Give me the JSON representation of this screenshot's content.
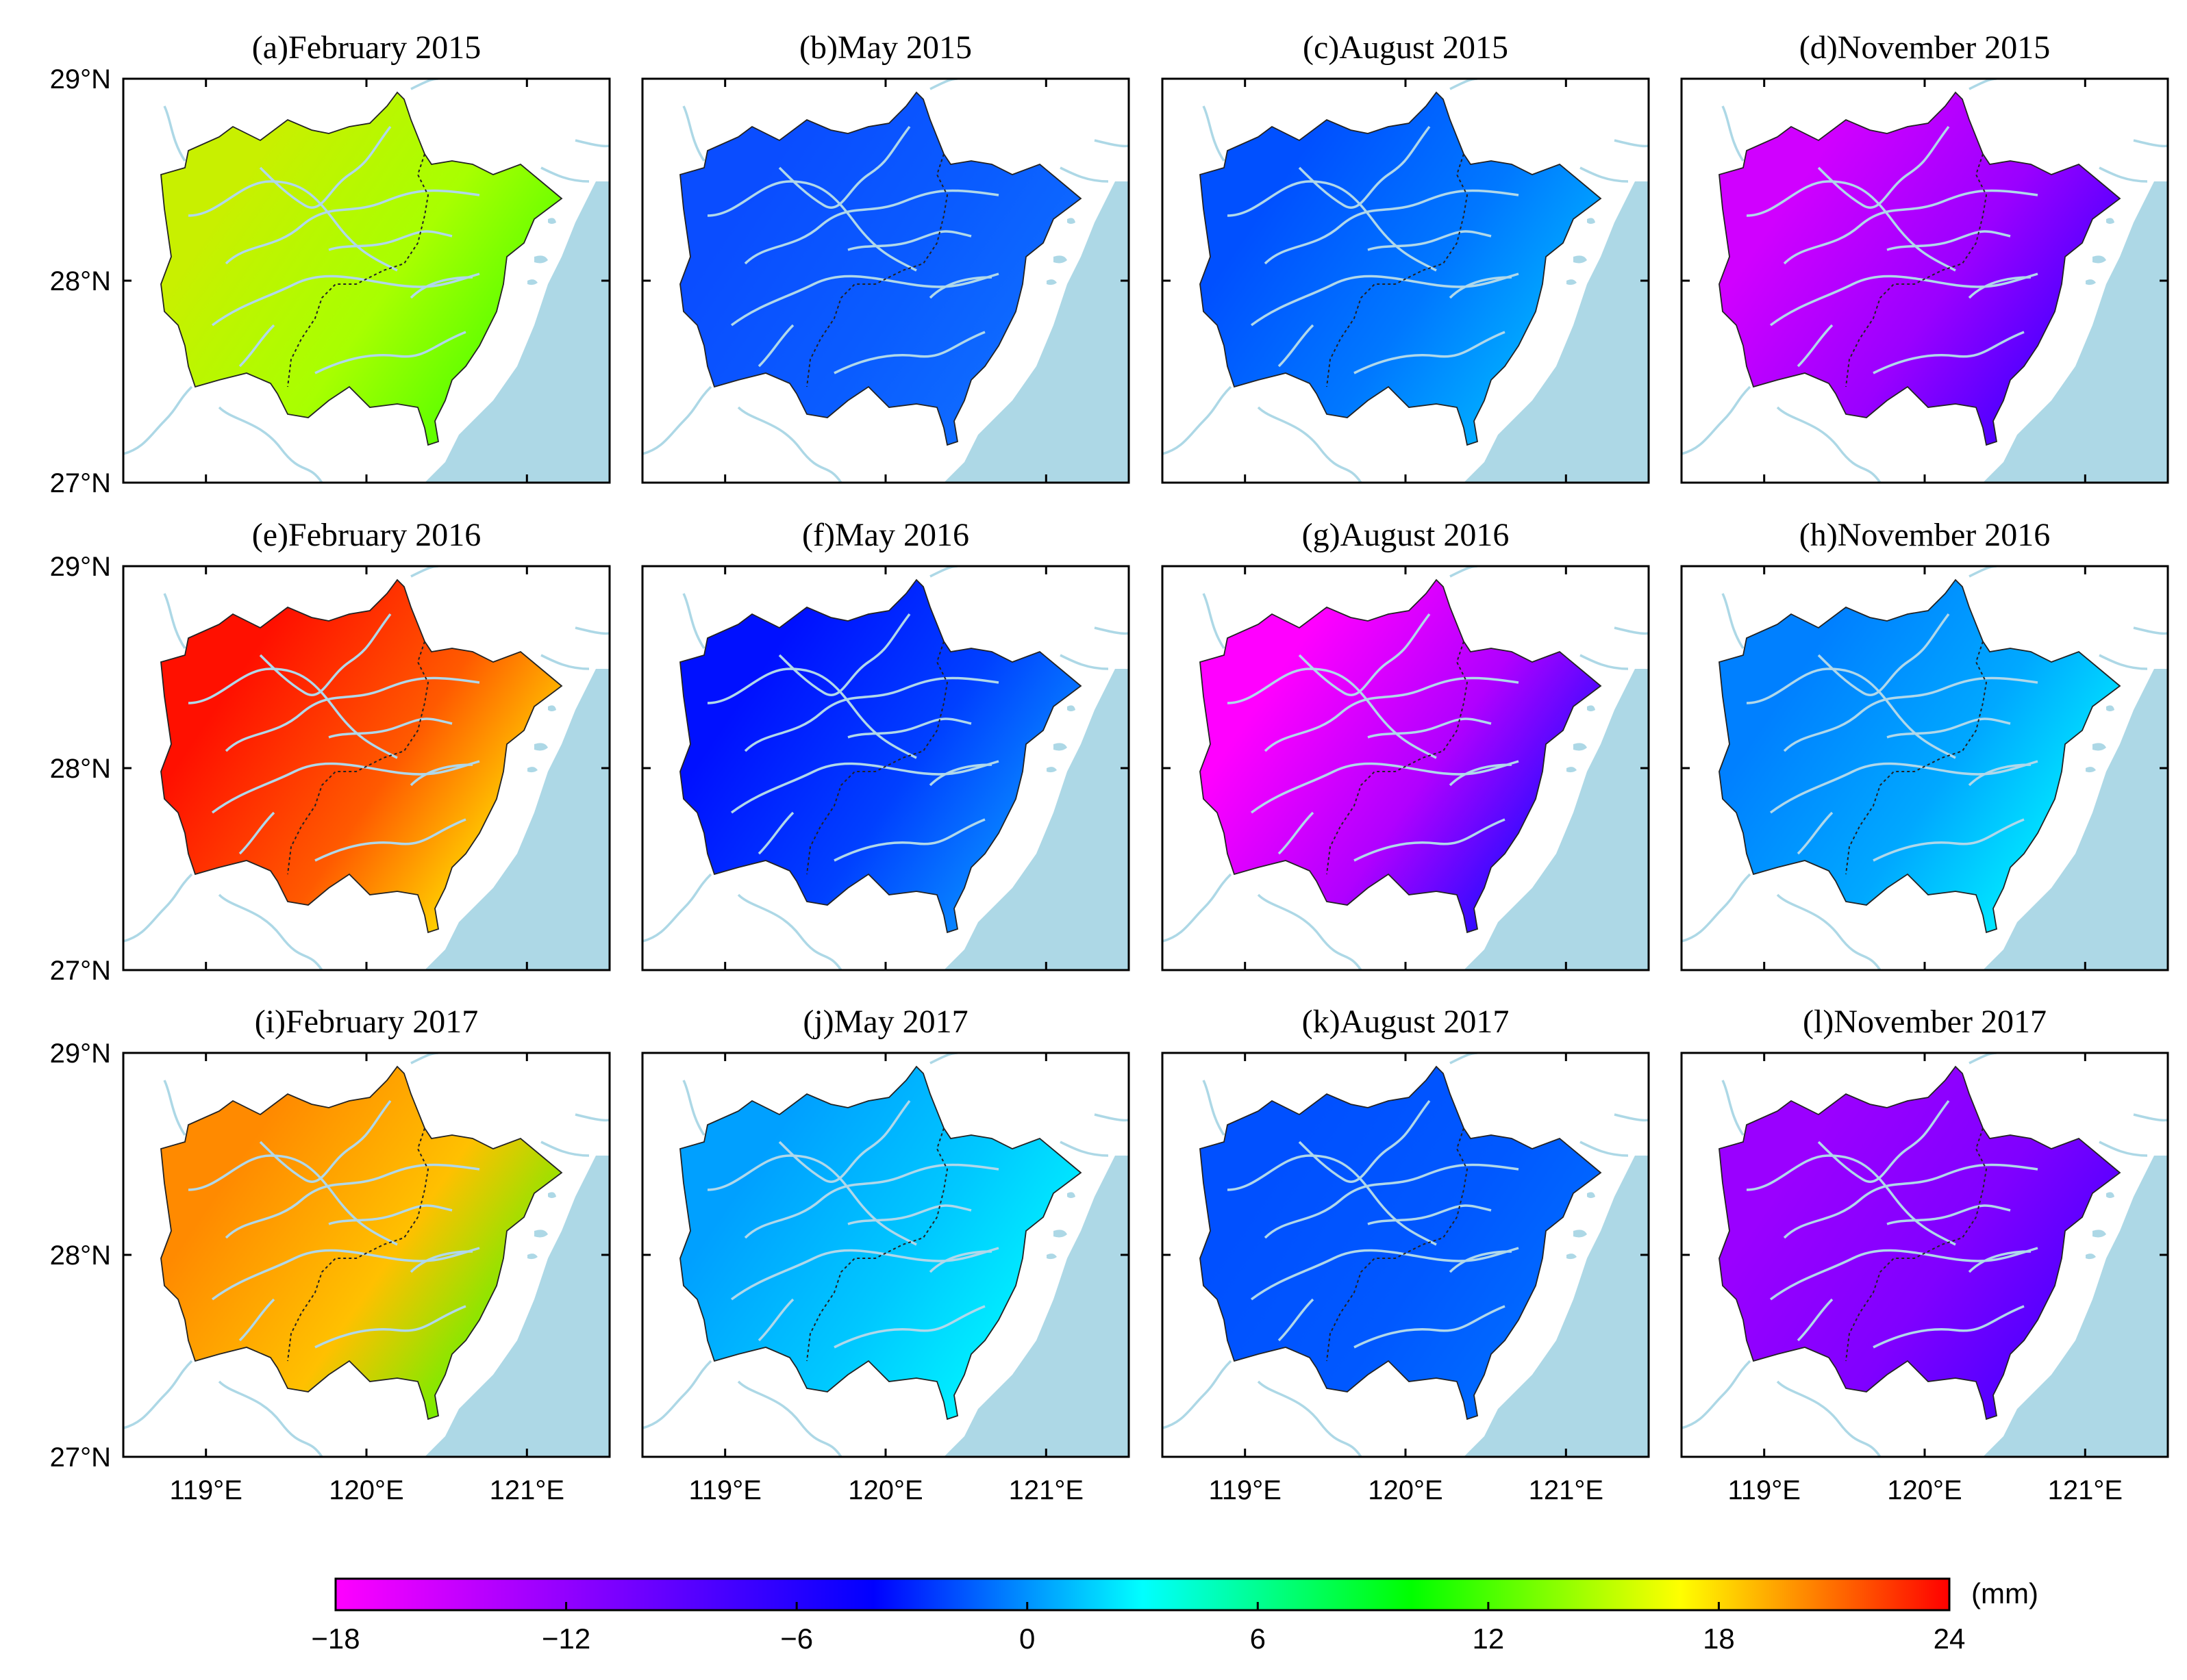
{
  "panels": [
    {
      "title": "(a)February 2015",
      "c1": "#c8f000",
      "c2": "#a8ff00",
      "c3": "#40ff00"
    },
    {
      "title": "(b)May 2015",
      "c1": "#0a4dff",
      "c2": "#0a5cff",
      "c3": "#1070ff"
    },
    {
      "title": "(c)August 2015",
      "c1": "#0050ff",
      "c2": "#0078ff",
      "c3": "#00bfff"
    },
    {
      "title": "(d)November 2015",
      "c1": "#d000ff",
      "c2": "#9a00ff",
      "c3": "#3000ff"
    },
    {
      "title": "(e)February 2016",
      "c1": "#ff1000",
      "c2": "#ff5a00",
      "c3": "#ffff00"
    },
    {
      "title": "(f)May 2016",
      "c1": "#0010ff",
      "c2": "#0040ff",
      "c3": "#0ba0ff"
    },
    {
      "title": "(g)August 2016",
      "c1": "#ff00ff",
      "c2": "#b000ff",
      "c3": "#0010ff"
    },
    {
      "title": "(h)November 2016",
      "c1": "#0080ff",
      "c2": "#00a8ff",
      "c3": "#00ffff"
    },
    {
      "title": "(i)February 2017",
      "c1": "#ff8a00",
      "c2": "#ffc000",
      "c3": "#40ff00"
    },
    {
      "title": "(j)May 2017",
      "c1": "#00a0ff",
      "c2": "#00c8ff",
      "c3": "#00ffff"
    },
    {
      "title": "(k)August 2017",
      "c1": "#0050ff",
      "c2": "#0058ff",
      "c3": "#0070ff"
    },
    {
      "title": "(l)November 2017",
      "c1": "#9a00ff",
      "c2": "#8000ff",
      "c3": "#4000ff"
    }
  ],
  "lat_labels": [
    "29°N",
    "28°N",
    "27°N"
  ],
  "lon_labels": [
    "119°E",
    "120°E",
    "121°E"
  ],
  "colorbar": {
    "unit": "(mm)",
    "min": -18,
    "max": 24,
    "ticks": [
      "−18",
      "−12",
      "−6",
      "0",
      "6",
      "12",
      "18",
      "24"
    ],
    "stops": [
      "#ff00ff",
      "#8000ff",
      "#0000ff",
      "#00ffff",
      "#00ff00",
      "#ffff00",
      "#ff0000"
    ]
  },
  "colors": {
    "sea": "#add8e6",
    "river": "#b0d8ea",
    "frame": "#000000"
  }
}
